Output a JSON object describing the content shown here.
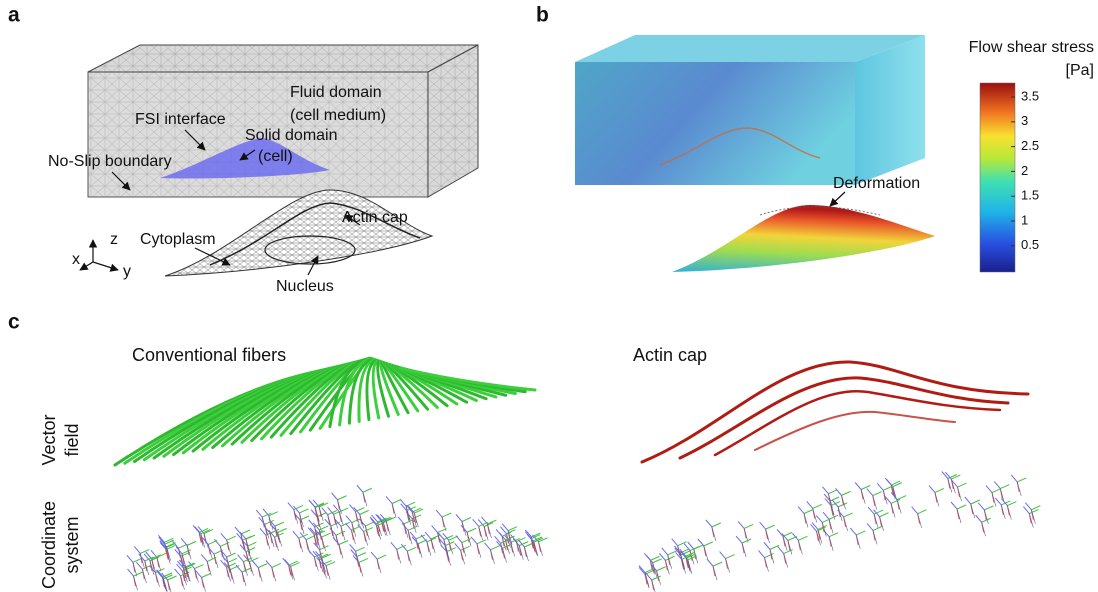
{
  "panel_a": {
    "label": "a",
    "fluid_domain": "Fluid domain",
    "fluid_domain_note": "(cell medium)",
    "fsi_interface": "FSI interface",
    "solid_domain": "Solid domain",
    "solid_domain_note": "(cell)",
    "no_slip": "No-Slip boundary",
    "actin_cap": "Actin cap",
    "cytoplasm": "Cytoplasm",
    "nucleus": "Nucleus",
    "axes": {
      "x": "x",
      "y": "y",
      "z": "z"
    }
  },
  "panel_b": {
    "label": "b",
    "colorbar_title": "Flow shear stress",
    "colorbar_unit": "[Pa]",
    "colorbar_ticks": [
      "3.5",
      "3",
      "2.5",
      "2",
      "1.5",
      "1",
      "0.5"
    ],
    "deformation": "Deformation"
  },
  "panel_c": {
    "label": "c",
    "left_title": "Conventional fibers",
    "right_title": "Actin cap",
    "row1": [
      "Vector",
      "field"
    ],
    "row2": [
      "Coordinate",
      "system"
    ]
  }
}
